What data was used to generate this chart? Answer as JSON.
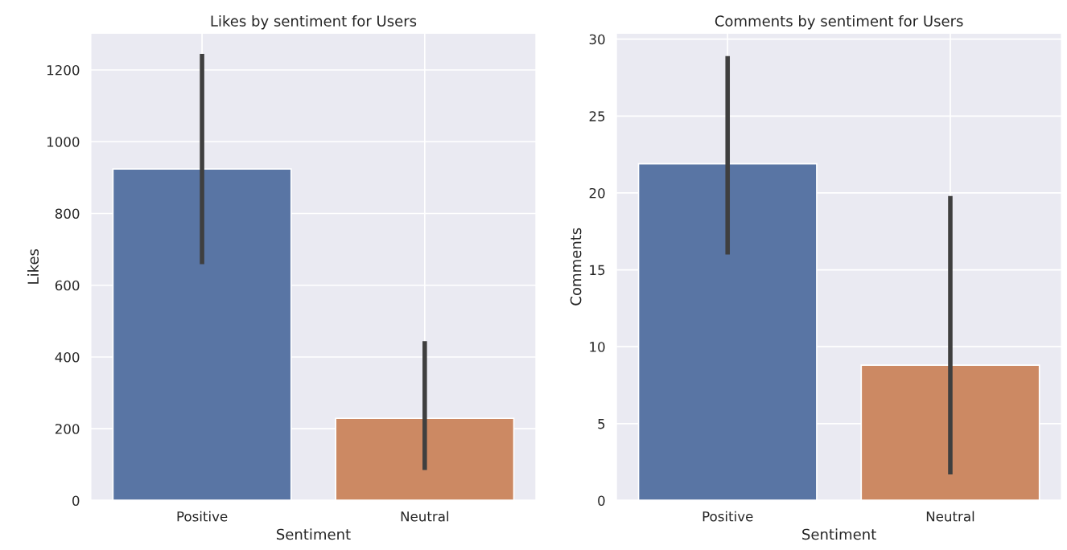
{
  "chart_data": [
    {
      "type": "bar",
      "title": "Likes by sentiment for Users",
      "xlabel": "Sentiment",
      "ylabel": "Likes",
      "categories": [
        "Positive",
        "Neutral"
      ],
      "values": [
        924,
        229
      ],
      "colors": [
        "#5975a4",
        "#cc8963"
      ],
      "errors": [
        [
          659,
          1245
        ],
        [
          85,
          444
        ]
      ],
      "ylim": [
        0,
        1303
      ],
      "yticks": [
        0,
        200,
        400,
        600,
        800,
        1000,
        1200
      ],
      "grid": true,
      "legend": false
    },
    {
      "type": "bar",
      "title": "Comments by sentiment for Users",
      "xlabel": "Sentiment",
      "ylabel": "Comments",
      "categories": [
        "Positive",
        "Neutral"
      ],
      "values": [
        21.9,
        8.8
      ],
      "colors": [
        "#5975a4",
        "#cc8963"
      ],
      "errors": [
        [
          16.0,
          28.9
        ],
        [
          1.7,
          19.8
        ]
      ],
      "ylim": [
        0,
        30.4
      ],
      "yticks": [
        0,
        5,
        10,
        15,
        20,
        25,
        30
      ],
      "grid": true,
      "legend": false
    }
  ]
}
